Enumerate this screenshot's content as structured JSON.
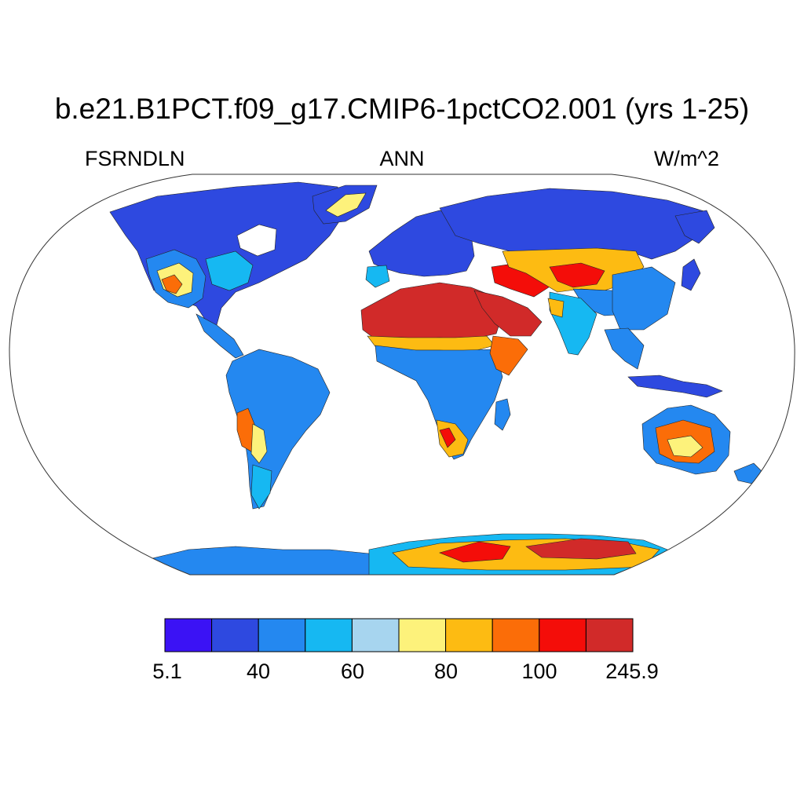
{
  "title": "b.e21.B1PCT.f09_g17.CMIP6-1pctCO2.001 (yrs 1-25)",
  "subtitle_left": "FSRNDLN",
  "subtitle_center": "ANN",
  "subtitle_right": "W/m^2",
  "colorbar": {
    "colors": [
      "#3b12f5",
      "#2e49e0",
      "#2488f0",
      "#16b8f2",
      "#a7d5ef",
      "#fdf27b",
      "#fdbb12",
      "#fb6d08",
      "#f40d09",
      "#d12a29"
    ],
    "tick_labels": [
      "5.1",
      "40",
      "60",
      "80",
      "100",
      "245.9"
    ]
  },
  "map": {
    "projection": "robinson",
    "ocean_color": "#ffffff",
    "outline_color": "#333333"
  }
}
